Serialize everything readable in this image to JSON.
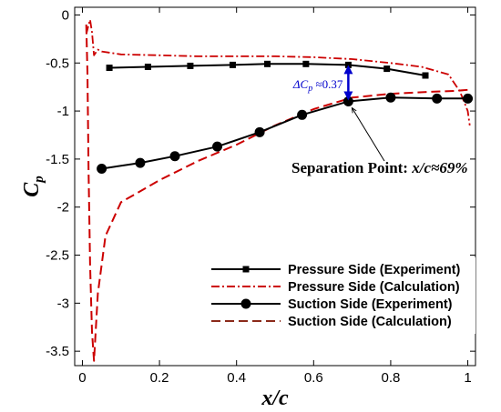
{
  "chart_data": {
    "type": "line",
    "xlabel": "x/c",
    "ylabel": "C",
    "ylabel_subscript": "p",
    "xlim": [
      -0.02,
      1.02
    ],
    "ylim": [
      -3.65,
      0.08
    ],
    "x_ticks": [
      0,
      0.2,
      0.4,
      0.6,
      0.8,
      1
    ],
    "x_tick_labels": [
      "0",
      "0.2",
      "0.4",
      "0.6",
      "0.8",
      "1"
    ],
    "y_ticks": [
      0,
      -0.5,
      -1,
      -1.5,
      -2,
      -2.5,
      -3,
      -3.5
    ],
    "y_tick_labels": [
      "0",
      "-0.5",
      "-1",
      "-1.5",
      "-2",
      "-2.5",
      "-3",
      "-3.5"
    ],
    "grid": false,
    "legend_position": "bottom-right",
    "series": [
      {
        "name": "Pressure Side (Experiment)",
        "style": "solid-square",
        "color": "#000000",
        "x": [
          0.07,
          0.17,
          0.28,
          0.39,
          0.48,
          0.58,
          0.69,
          0.79,
          0.89
        ],
        "y": [
          -0.55,
          -0.54,
          -0.53,
          -0.52,
          -0.51,
          -0.51,
          -0.52,
          -0.56,
          -0.63
        ]
      },
      {
        "name": "Pressure Side (Calculation)",
        "style": "dash-dot",
        "color": "#cc0000",
        "x": [
          0.01,
          0.015,
          0.02,
          0.025,
          0.03,
          0.04,
          0.05,
          0.1,
          0.2,
          0.3,
          0.4,
          0.5,
          0.6,
          0.7,
          0.8,
          0.88,
          0.95,
          0.98,
          1.0,
          1.005
        ],
        "y": [
          -0.2,
          -0.12,
          -0.05,
          -0.18,
          -0.42,
          -0.36,
          -0.38,
          -0.41,
          -0.42,
          -0.43,
          -0.43,
          -0.43,
          -0.44,
          -0.46,
          -0.5,
          -0.54,
          -0.62,
          -0.8,
          -1.0,
          -1.15
        ]
      },
      {
        "name": "Suction Side (Experiment)",
        "style": "solid-circle",
        "color": "#000000",
        "x": [
          0.05,
          0.15,
          0.24,
          0.35,
          0.46,
          0.57,
          0.69,
          0.8,
          0.92,
          1.0
        ],
        "y": [
          -1.6,
          -1.54,
          -1.47,
          -1.37,
          -1.22,
          -1.04,
          -0.9,
          -0.86,
          -0.87,
          -0.87
        ]
      },
      {
        "name": "Suction Side (Calculation)",
        "style": "dashed",
        "color": "#cc0000",
        "x": [
          0.01,
          0.013,
          0.016,
          0.02,
          0.025,
          0.03,
          0.04,
          0.06,
          0.1,
          0.2,
          0.3,
          0.4,
          0.5,
          0.6,
          0.7,
          0.8,
          0.9,
          0.97,
          1.0
        ],
        "y": [
          -0.1,
          -0.6,
          -1.6,
          -2.6,
          -3.3,
          -3.6,
          -2.9,
          -2.3,
          -1.95,
          -1.72,
          -1.52,
          -1.35,
          -1.15,
          -0.98,
          -0.86,
          -0.82,
          -0.8,
          -0.79,
          -0.78
        ]
      }
    ],
    "annotations": {
      "delta_label": "ΔC",
      "delta_subscript": "p",
      "delta_value": " ≈0.37",
      "delta_x": 0.69,
      "delta_y_top": -0.53,
      "delta_y_bottom": -0.9,
      "separation_label": "Separation Point: ",
      "separation_value": "x/c≈69%",
      "separation_x": 0.69,
      "separation_y": -0.9
    }
  }
}
